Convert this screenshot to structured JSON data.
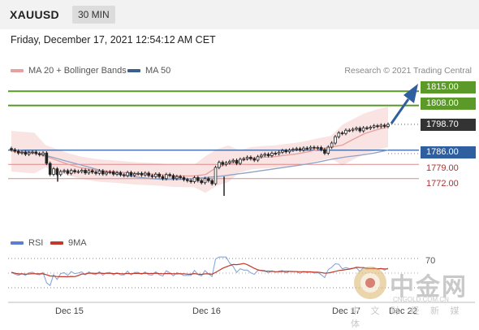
{
  "header": {
    "symbol": "XAUUSD",
    "timeframe": "30 MIN"
  },
  "datetime": "Friday, December 17, 2021 12:54:12 AM CET",
  "legend": {
    "ma20_label": "MA 20 + Bollinger Bands",
    "ma50_label": "MA 50",
    "credit": "Research © 2021 Trading Central"
  },
  "levels": [
    {
      "label": "1815.00",
      "style": "green"
    },
    {
      "label": "1808.00",
      "style": "green"
    },
    {
      "label": "1798.70",
      "style": "dark"
    },
    {
      "label": "1786.00",
      "style": "blue"
    },
    {
      "label": "1779.00",
      "style": "red"
    },
    {
      "label": "1772.00",
      "style": "red"
    }
  ],
  "rsi": {
    "rsi_label": "RSI",
    "ma_label": "9MA",
    "level_label": "70"
  },
  "xaxis": {
    "labels": [
      "Dec 15",
      "Dec 16",
      "Dec 17",
      "Dec 22"
    ]
  },
  "watermark": {
    "cn": "中金网",
    "url": "CNGOLD.COM.CN",
    "sub": "中 文 财 经 新 媒 体"
  },
  "colors": {
    "green": "#5b9a28",
    "blue": "#2f5f9e",
    "red": "#e08a8a",
    "ma50": "#8fa3c4",
    "ma20": "#e6a0a0",
    "rsi": "#8aa6d6",
    "rsi_ma": "#c0392b"
  },
  "chart_data": {
    "type": "candlestick",
    "symbol": "XAUUSD",
    "timeframe": "30 MIN",
    "price_levels": [
      1815.0,
      1808.0,
      1798.7,
      1786.0,
      1779.0,
      1772.0
    ],
    "current_price": 1798.7,
    "ylim": [
      1763,
      1818
    ],
    "close": [
      1786.2,
      1785.5,
      1784.6,
      1785.0,
      1784.0,
      1784.8,
      1785.1,
      1784.3,
      1783.8,
      1784.6,
      1779.5,
      1774.1,
      1776.8,
      1774.0,
      1775.5,
      1775.9,
      1774.6,
      1776.0,
      1775.3,
      1775.5,
      1776.1,
      1774.8,
      1775.9,
      1775.2,
      1774.6,
      1775.8,
      1774.3,
      1775.1,
      1775.3,
      1774.2,
      1774.9,
      1773.9,
      1773.5,
      1775.0,
      1773.6,
      1774.4,
      1774.6,
      1773.8,
      1774.7,
      1773.5,
      1773.0,
      1774.2,
      1773.0,
      1772.0,
      1774.0,
      1773.5,
      1772.0,
      1773.0,
      1772.5,
      1771.5,
      1771.0,
      1770.5,
      1772.5,
      1771.0,
      1770.0,
      1772.0,
      1771.0,
      1769.5,
      1777.5,
      1780.0,
      1779.0,
      1779.8,
      1780.4,
      1781.0,
      1779.5,
      1781.5,
      1781.8,
      1782.5,
      1781.8,
      1781.1,
      1782.8,
      1783.5,
      1784.0,
      1783.3,
      1784.5,
      1784.3,
      1785.0,
      1785.8,
      1785.2,
      1786.0,
      1786.4,
      1786.7,
      1786.1,
      1787.0,
      1786.8,
      1787.4,
      1787.0,
      1787.3,
      1786.3,
      1784.5,
      1787.5,
      1789.5,
      1792.6,
      1794.5,
      1794.2,
      1795.8,
      1795.8,
      1796.3,
      1796.8,
      1795.5,
      1797.0,
      1796.8,
      1797.3,
      1798.0,
      1797.6,
      1798.3,
      1797.7,
      1798.7
    ],
    "ma20": [
      1785.5,
      1785.0,
      1784.6,
      1783.0,
      1781.0,
      1779.0,
      1777.5,
      1776.5,
      1775.8,
      1775.5,
      1775.0,
      1774.5,
      1774.3,
      1774.0,
      1773.5,
      1773.3,
      1773.3,
      1774.0,
      1777.5,
      1779.3,
      1780.5,
      1782.0,
      1782.5,
      1782.8,
      1783.5,
      1784.2,
      1785.2,
      1786.5,
      1787.5,
      1788.5,
      1791.5,
      1794.3,
      1796.0,
      1797.5
    ],
    "ma50": [
      1786.3,
      1785.6,
      1784.2,
      1782.4,
      1780.5,
      1778.7,
      1776.8,
      1775.0,
      1773.7,
      1772.8,
      1772.0,
      1771.6,
      1771.6,
      1772.0,
      1772.6,
      1773.2,
      1774.1,
      1775.0,
      1776.0,
      1777.0,
      1778.0,
      1779.0,
      1780.2,
      1781.6,
      1782.7,
      1783.5,
      1784.6,
      1786.0
    ],
    "rsi_levels": [
      70
    ],
    "x_tick_labels": [
      "Dec 15",
      "Dec 16",
      "Dec 17",
      "Dec 22"
    ],
    "grid": false
  }
}
